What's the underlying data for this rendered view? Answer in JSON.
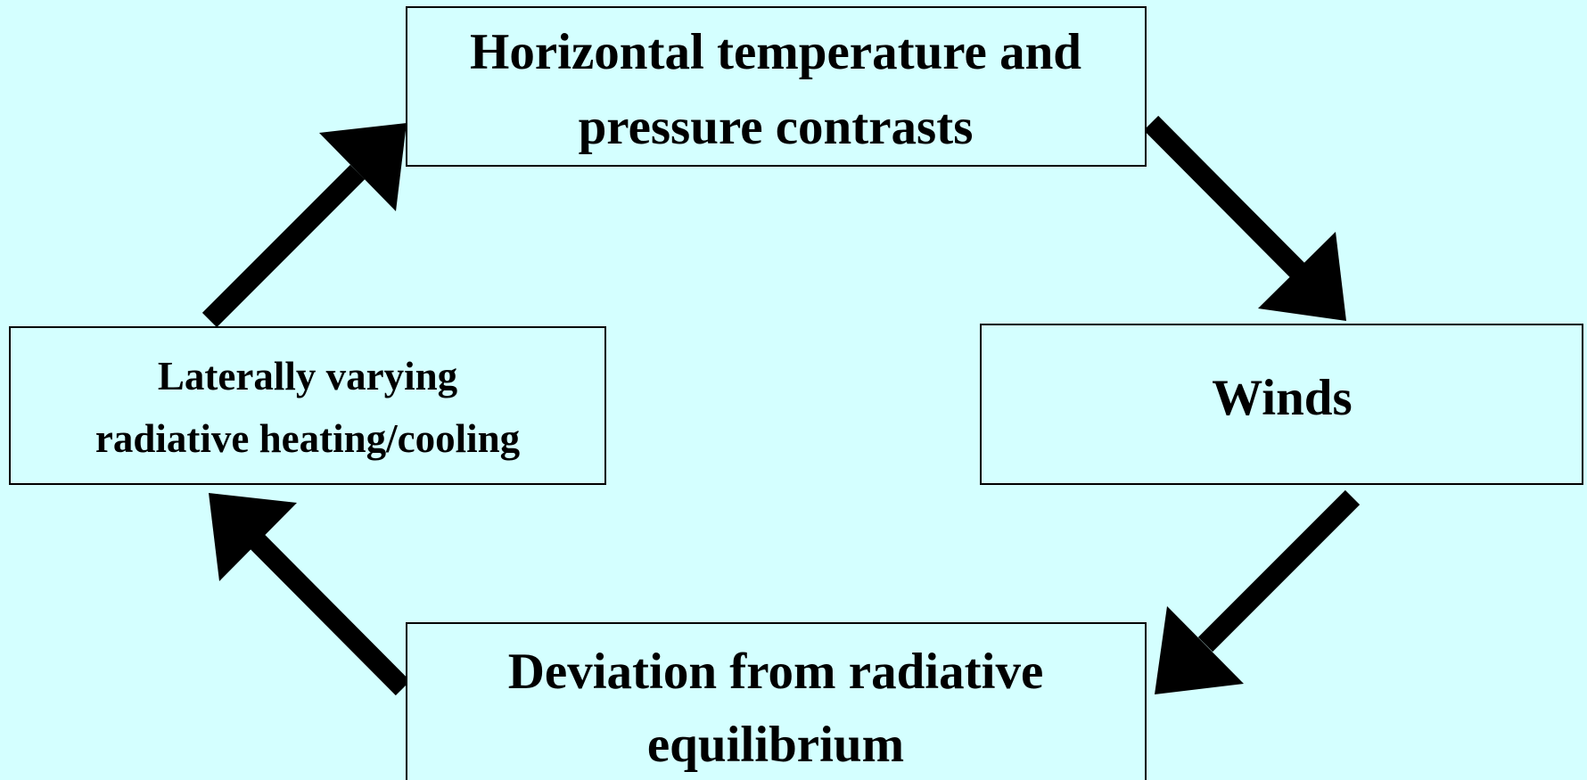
{
  "nodes": [
    {
      "lines": [
        "Horizontal temperature and",
        "pressure contrasts"
      ]
    },
    {
      "lines": [
        "Winds"
      ]
    },
    {
      "lines": [
        "Deviation from radiative",
        "equilibrium"
      ]
    },
    {
      "lines": [
        "Laterally varying",
        "radiative heating/cooling"
      ]
    }
  ]
}
